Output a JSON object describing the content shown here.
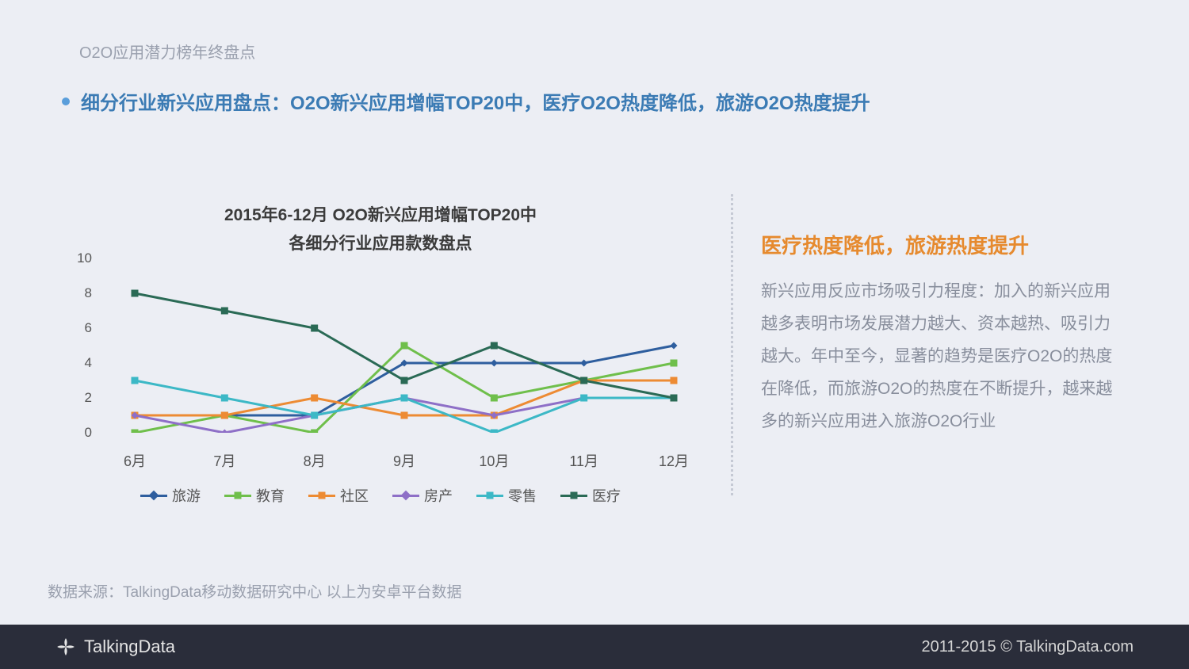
{
  "breadcrumb": "O2O应用潜力榜年终盘点",
  "headline": "细分行业新兴应用盘点：O2O新兴应用增幅TOP20中，医疗O2O热度降低，旅游O2O热度提升",
  "chart": {
    "type": "line",
    "title_line1": "2015年6-12月 O2O新兴应用增幅TOP20中",
    "title_line2": "各细分行业应用款数盘点",
    "title_fontsize": 21,
    "categories": [
      "6月",
      "7月",
      "8月",
      "9月",
      "10月",
      "11月",
      "12月"
    ],
    "ylim": [
      0,
      10
    ],
    "yticks": [
      0,
      2,
      4,
      6,
      8,
      10
    ],
    "label_fontsize": 17,
    "background_color": "#eceef4",
    "grid": false,
    "line_width": 3,
    "marker_size": 9,
    "series": [
      {
        "name": "旅游",
        "color": "#2e5e9e",
        "marker": "diamond",
        "values": [
          1,
          1,
          1,
          4,
          4,
          4,
          5
        ]
      },
      {
        "name": "教育",
        "color": "#6fbf4b",
        "marker": "square",
        "values": [
          0,
          1,
          0,
          5,
          2,
          3,
          4
        ]
      },
      {
        "name": "社区",
        "color": "#ed8b33",
        "marker": "square",
        "values": [
          1,
          1,
          2,
          1,
          1,
          3,
          3
        ]
      },
      {
        "name": "房产",
        "color": "#8e6fc7",
        "marker": "diamond",
        "values": [
          1,
          0,
          1,
          2,
          1,
          2,
          2
        ]
      },
      {
        "name": "零售",
        "color": "#3cb8c6",
        "marker": "square",
        "values": [
          3,
          2,
          1,
          2,
          0,
          2,
          2
        ]
      },
      {
        "name": "医疗",
        "color": "#2a6a55",
        "marker": "square",
        "values": [
          8,
          7,
          6,
          3,
          5,
          3,
          2
        ]
      }
    ]
  },
  "side": {
    "title": "医疗热度降低，旅游热度提升",
    "body": "新兴应用反应市场吸引力程度：加入的新兴应用越多表明市场发展潜力越大、资本越热、吸引力越大。年中至今，显著的趋势是医疗O2O的热度在降低，而旅游O2O的热度在不断提升，越来越多的新兴应用进入旅游O2O行业"
  },
  "source": "数据来源：TalkingData移动数据研究中心   以上为安卓平台数据",
  "brand": "TalkingData",
  "copyright": "2011-2015 © TalkingData.com",
  "footer_bg": "#2a2d3a"
}
